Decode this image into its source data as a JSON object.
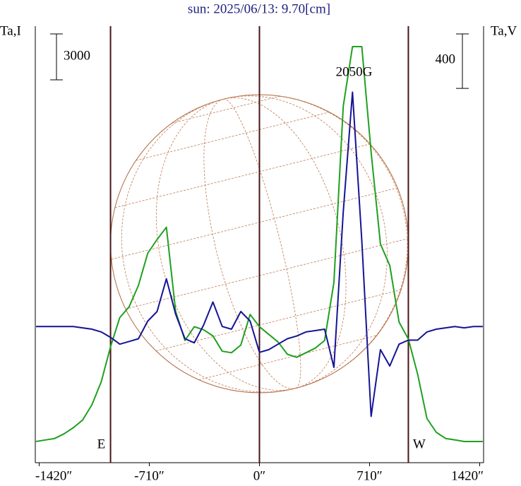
{
  "chart_data": {
    "type": "line",
    "title": "sun: 2025/06/13: 9.70[cm]",
    "y_label": "Ta,I",
    "y2_label": "Ta,V",
    "xlim": [
      -1445,
      1445
    ],
    "xticks": [
      {
        "value": -1420,
        "label": "-1420″"
      },
      {
        "value": -710,
        "label": "-710″"
      },
      {
        "value": 0,
        "label": "0″"
      },
      {
        "value": 710,
        "label": "710″"
      },
      {
        "value": 1420,
        "label": "1420″"
      }
    ],
    "ylim": [
      -1385,
      27140
    ],
    "y2lim": [
      -1000,
      2205
    ],
    "y_scale_bar": 3000,
    "y2_scale_bar": 400,
    "vlines": [
      -960,
      0,
      960
    ],
    "sun_radius": 960,
    "annotations": [
      {
        "text": "2050G",
        "x": 610
      },
      {
        "text": "E",
        "x": -1020
      },
      {
        "text": "W",
        "x": 1030
      }
    ],
    "x": [
      -1440,
      -1380,
      -1320,
      -1260,
      -1200,
      -1140,
      -1080,
      -1020,
      -960,
      -900,
      -840,
      -780,
      -720,
      -660,
      -600,
      -540,
      -480,
      -420,
      -360,
      -300,
      -240,
      -180,
      -120,
      -60,
      0,
      60,
      120,
      180,
      240,
      300,
      360,
      420,
      480,
      540,
      600,
      660,
      720,
      780,
      840,
      900,
      960,
      1020,
      1080,
      1140,
      1200,
      1260,
      1320,
      1380,
      1440
    ],
    "series": [
      {
        "color": "#1fa01f",
        "axis": "y",
        "values": [
          0,
          100,
          200,
          500,
          900,
          1400,
          2400,
          3900,
          6200,
          8100,
          8800,
          10200,
          12300,
          13200,
          14000,
          8500,
          6600,
          7500,
          7300,
          6900,
          5900,
          5800,
          6300,
          8300,
          7500,
          7000,
          6500,
          5700,
          5500,
          5800,
          6100,
          6600,
          10400,
          21900,
          25800,
          25800,
          18900,
          12900,
          11500,
          7800,
          6700,
          4400,
          1500,
          600,
          200,
          100,
          0,
          0,
          0
        ]
      },
      {
        "color": "#141496",
        "axis": "y2",
        "values": [
          0,
          0,
          0,
          0,
          0,
          -10,
          -20,
          -40,
          -80,
          -130,
          -110,
          -90,
          40,
          110,
          350,
          90,
          -90,
          -120,
          10,
          180,
          0,
          -20,
          110,
          40,
          -190,
          -170,
          -130,
          -90,
          -70,
          -40,
          -30,
          -20,
          -300,
          840,
          1720,
          630,
          -660,
          -170,
          -290,
          -130,
          -100,
          -100,
          -40,
          -20,
          -10,
          0,
          -10,
          0,
          0
        ]
      }
    ]
  }
}
